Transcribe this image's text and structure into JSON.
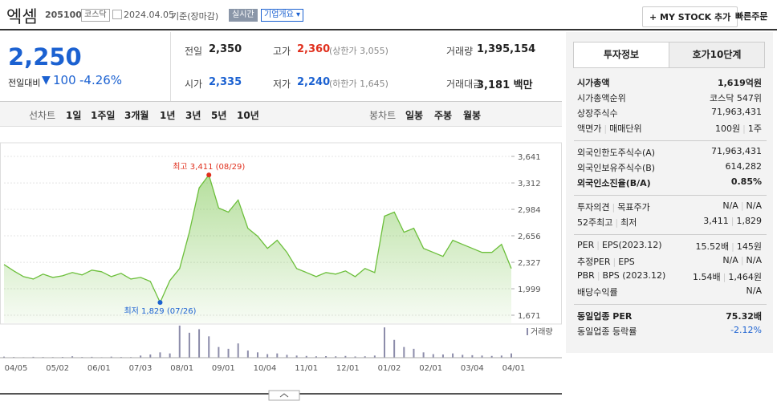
{
  "header": {
    "name": "엑셈",
    "code": "205100",
    "market": "코스닥",
    "date": "2024.04.05",
    "basis": "기준(장마감)",
    "badge": "실시간",
    "company": "기업개요",
    "add": "+ MY STOCK 추가",
    "order": "빠른주문"
  },
  "quote": {
    "price": "2,250",
    "change_label": "전일대비",
    "change": "100",
    "rate": "-4.26%",
    "cells": [
      {
        "label": "전일",
        "value": "2,350"
      },
      {
        "label": "고가",
        "value": "2,360",
        "note": "(상한가 3,055)"
      },
      {
        "label": "거래량",
        "value": "1,395,154"
      },
      {
        "label": "시가",
        "value": "2,335"
      },
      {
        "label": "저가",
        "value": "2,240",
        "note": "(하한가 1,645)"
      },
      {
        "label": "거래대금",
        "value": "3,181 백만"
      }
    ]
  },
  "tabs": {
    "line_label": "선차트",
    "line_tabs": [
      "1일",
      "1주일",
      "3개월",
      "1년",
      "3년",
      "5년",
      "10년"
    ],
    "candle_label": "봉차트",
    "candle_tabs": [
      "일봉",
      "주봉",
      "월봉"
    ]
  },
  "chart_data": {
    "type": "line",
    "color": "#6cbf3b",
    "values": [
      2300,
      2220,
      2150,
      2120,
      2180,
      2140,
      2160,
      2200,
      2170,
      2230,
      2210,
      2150,
      2190,
      2120,
      2140,
      2090,
      1829,
      2100,
      2250,
      2700,
      3250,
      3411,
      3000,
      2950,
      3100,
      2750,
      2650,
      2500,
      2600,
      2450,
      2250,
      2200,
      2150,
      2200,
      2180,
      2220,
      2150,
      2250,
      2200,
      2900,
      2950,
      2700,
      2750,
      2500,
      2450,
      2400,
      2600,
      2550,
      2500,
      2450,
      2450,
      2550,
      2250
    ],
    "ylim": [
      1671,
      3641
    ],
    "yticks": [
      {
        "value": 3641,
        "label": "3,641"
      },
      {
        "value": 3312,
        "label": "3,312"
      },
      {
        "value": 2984,
        "label": "2,984"
      },
      {
        "value": 2656,
        "label": "2,656"
      },
      {
        "value": 2327,
        "label": "2,327"
      },
      {
        "value": 1999,
        "label": "1,999"
      },
      {
        "value": 1671,
        "label": "1,671"
      }
    ],
    "xtick_labels": [
      "04/05",
      "05/02",
      "06/01",
      "07/03",
      "08/01",
      "09/01",
      "10/04",
      "11/01",
      "12/01",
      "01/02",
      "02/01",
      "03/04",
      "04/01"
    ],
    "annotations": [
      {
        "label": "최고 3,411 (08/29)",
        "value": 3411,
        "color": "#e0301e"
      },
      {
        "label": "최저 1,829 (07/26)",
        "value": 1829,
        "color": "#1b61d1"
      }
    ],
    "volume": {
      "name": "거래량",
      "color": "#8c8caa",
      "values": [
        30000,
        20000,
        15000,
        25000,
        20000,
        18000,
        22000,
        40000,
        20000,
        25000,
        15000,
        30000,
        20000,
        18000,
        60000,
        90000,
        150000,
        120000,
        900000,
        700000,
        800000,
        600000,
        300000,
        250000,
        400000,
        200000,
        150000,
        100000,
        120000,
        80000,
        60000,
        50000,
        40000,
        45000,
        40000,
        50000,
        35000,
        40000,
        60000,
        850000,
        500000,
        300000,
        250000,
        150000,
        100000,
        90000,
        120000,
        80000,
        70000,
        60000,
        50000,
        60000,
        120000
      ]
    }
  },
  "side": {
    "tabs": [
      "투자정보",
      "호가10단계"
    ],
    "groups": [
      [
        {
          "label": [
            "시가총액"
          ],
          "value": [
            "1,619억원"
          ],
          "bold": true
        },
        {
          "label": [
            "시가총액순위"
          ],
          "value": [
            "코스닥 547위"
          ]
        },
        {
          "label": [
            "상장주식수"
          ],
          "value": [
            "71,963,431"
          ]
        },
        {
          "label": [
            "액면가",
            "매매단위"
          ],
          "value": [
            "100원",
            "1주"
          ]
        }
      ],
      [
        {
          "label": [
            "외국인한도주식수(A)"
          ],
          "value": [
            "71,963,431"
          ]
        },
        {
          "label": [
            "외국인보유주식수(B)"
          ],
          "value": [
            "614,282"
          ]
        },
        {
          "label": [
            "외국인소진율(B/A)"
          ],
          "value": [
            "0.85%"
          ],
          "bold": true
        }
      ],
      [
        {
          "label": [
            "투자의견",
            "목표주가"
          ],
          "value": [
            "N/A",
            "N/A"
          ]
        },
        {
          "label": [
            "52주최고",
            "최저"
          ],
          "value": [
            "3,411",
            "1,829"
          ]
        }
      ],
      [
        {
          "label": [
            "PER",
            "EPS(2023.12)"
          ],
          "value": [
            "15.52배",
            "145원"
          ]
        },
        {
          "label": [
            "추정PER",
            "EPS"
          ],
          "value": [
            "N/A",
            "N/A"
          ]
        },
        {
          "label": [
            "PBR",
            "BPS (2023.12)"
          ],
          "value": [
            "1.54배",
            "1,464원"
          ]
        },
        {
          "label": [
            "배당수익률"
          ],
          "value": [
            "N/A"
          ]
        }
      ],
      [
        {
          "label": [
            "동일업종 PER"
          ],
          "value": [
            "75.32배"
          ],
          "bold": true
        },
        {
          "label": [
            "동일업종 등락률"
          ],
          "value": [
            "-2.12%"
          ],
          "blue": true
        }
      ]
    ]
  }
}
